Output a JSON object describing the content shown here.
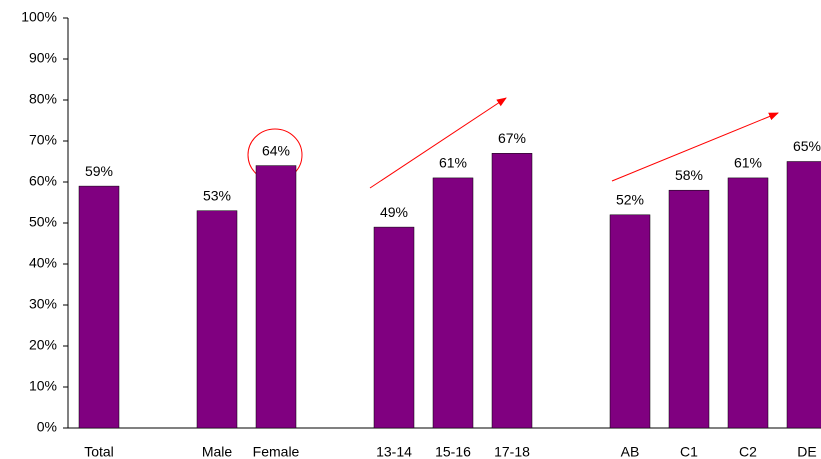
{
  "chart_data": {
    "type": "bar",
    "categories": [
      "Total",
      null,
      "Male",
      "Female",
      null,
      "13-14",
      "15-16",
      "17-18",
      null,
      "AB",
      "C1",
      "C2",
      "DE"
    ],
    "values": [
      59,
      null,
      53,
      64,
      null,
      49,
      61,
      67,
      null,
      52,
      58,
      61,
      65
    ],
    "value_labels": [
      "59%",
      null,
      "53%",
      "64%",
      null,
      "49%",
      "61%",
      "67%",
      null,
      "52%",
      "58%",
      "61%",
      "65%"
    ],
    "color": "#800080",
    "ylim": [
      0,
      100
    ],
    "yticks": [
      {
        "value": 0,
        "label": "0%"
      },
      {
        "value": 10,
        "label": "10%"
      },
      {
        "value": 20,
        "label": "20%"
      },
      {
        "value": 30,
        "label": "30%"
      },
      {
        "value": 40,
        "label": "40%"
      },
      {
        "value": 50,
        "label": "50%"
      },
      {
        "value": 60,
        "label": "60%"
      },
      {
        "value": 70,
        "label": "70%"
      },
      {
        "value": 80,
        "label": "80%"
      },
      {
        "value": 90,
        "label": "90%"
      },
      {
        "value": 100,
        "label": "100%"
      }
    ],
    "grid": false
  }
}
